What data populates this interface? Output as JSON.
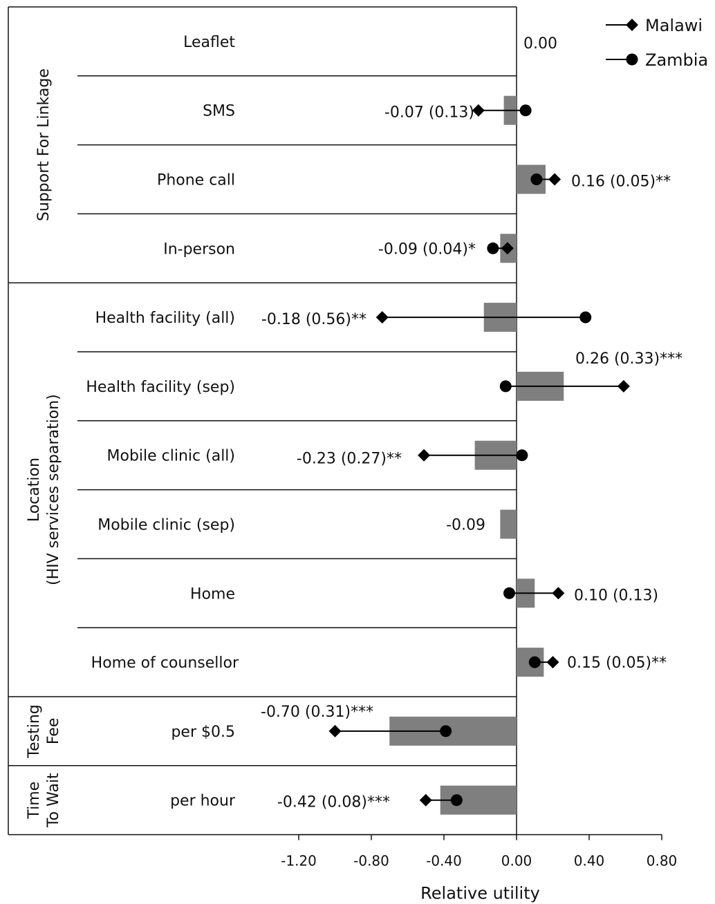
{
  "chart_data": {
    "type": "bar",
    "xlabel": "Relative utility",
    "xlim": [
      -1.6,
      0.8
    ],
    "xticks": [
      "-1.20",
      "-0.80",
      "-0.40",
      "0.00",
      "0.40",
      "0.80"
    ],
    "xtick_values": [
      -1.2,
      -0.8,
      -0.4,
      0.0,
      0.4,
      0.8
    ],
    "grid": false,
    "legend": {
      "position": "top-right",
      "entries": [
        "Malawi",
        "Zambia"
      ]
    },
    "groups": [
      {
        "label": "Support For Linkage",
        "from": 0,
        "to": 3
      },
      {
        "label_lines": [
          "Location",
          "(HIV services separation)"
        ],
        "from": 4,
        "to": 9
      },
      {
        "label_lines": [
          "Testing",
          "Fee"
        ],
        "from": 10,
        "to": 10
      },
      {
        "label_lines": [
          "Time",
          "To Wait"
        ],
        "from": 11,
        "to": 11
      }
    ],
    "categories": [
      "Leaflet",
      "SMS",
      "Phone call",
      "In-person",
      "Health facility (all)",
      "Health facility (sep)",
      "Mobile clinic (all)",
      "Mobile clinic (sep)",
      "Home",
      "Home of counsellor",
      "per $0.5",
      "per hour"
    ],
    "series": [
      {
        "name": "",
        "values": [
          0.0,
          -0.07,
          0.16,
          -0.09,
          -0.18,
          0.26,
          -0.23,
          -0.09,
          0.1,
          0.15,
          -0.7,
          -0.42
        ]
      },
      {
        "name": "Malawi",
        "values": [
          null,
          -0.21,
          0.21,
          -0.05,
          -0.74,
          0.59,
          -0.51,
          null,
          0.23,
          0.2,
          -1.0,
          -0.5
        ]
      },
      {
        "name": "Zambia",
        "values": [
          null,
          0.05,
          0.11,
          -0.13,
          0.38,
          -0.06,
          0.03,
          null,
          -0.04,
          0.1,
          -0.39,
          -0.33
        ]
      }
    ],
    "data_labels": [
      "0.00",
      "-0.07 (0.13)",
      "0.16 (0.05)**",
      "-0.09 (0.04)*",
      "-0.18 (0.56)**",
      "0.26 (0.33)***",
      "-0.23 (0.27)**",
      "-0.09",
      "0.10 (0.13)",
      "0.15 (0.05)**",
      "-0.70 (0.31)***",
      "-0.42 (0.08)***"
    ]
  }
}
